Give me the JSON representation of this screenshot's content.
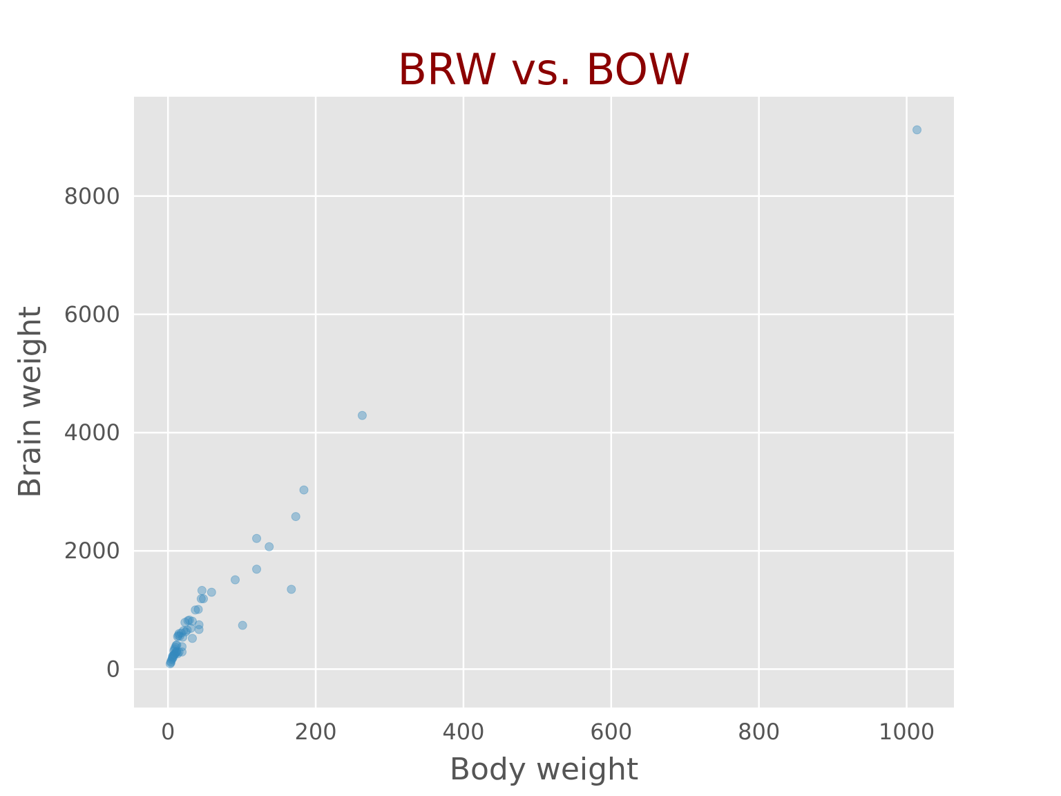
{
  "chart_data": {
    "type": "scatter",
    "title": "BRW vs. BOW",
    "xlabel": "Body weight",
    "ylabel": "Brain weight",
    "xlim": [
      -46,
      1064
    ],
    "ylim": [
      -650,
      9680
    ],
    "xticks": [
      0,
      200,
      400,
      600,
      800,
      1000
    ],
    "yticks": [
      0,
      2000,
      4000,
      6000,
      8000
    ],
    "xtick_labels": [
      "0",
      "200",
      "400",
      "600",
      "800",
      "1000"
    ],
    "ytick_labels": [
      "0",
      "2000",
      "4000",
      "6000",
      "8000"
    ],
    "grid": true,
    "colors": {
      "background": "#e5e5e5",
      "grid": "#ffffff",
      "point": "#348abd",
      "title": "#8b0000",
      "text": "#555555"
    },
    "point_alpha": 0.4,
    "series": [
      {
        "points": [
          [
            1014,
            9120
          ],
          [
            263,
            4290
          ],
          [
            184,
            3030
          ],
          [
            173,
            2580
          ],
          [
            120,
            2210
          ],
          [
            137,
            2070
          ],
          [
            120,
            1690
          ],
          [
            91,
            1510
          ],
          [
            167,
            1350
          ],
          [
            101,
            740
          ],
          [
            59,
            1300
          ],
          [
            46,
            1330
          ],
          [
            48,
            1190
          ],
          [
            45,
            1190
          ],
          [
            41,
            1010
          ],
          [
            37,
            1000
          ],
          [
            42,
            750
          ],
          [
            42,
            670
          ],
          [
            29,
            830
          ],
          [
            27,
            820
          ],
          [
            33,
            810
          ],
          [
            23,
            790
          ],
          [
            31,
            690
          ],
          [
            26,
            660
          ],
          [
            21,
            650
          ],
          [
            24,
            630
          ],
          [
            18,
            610
          ],
          [
            15,
            600
          ],
          [
            14,
            570
          ],
          [
            16,
            560
          ],
          [
            13,
            550
          ],
          [
            20,
            540
          ],
          [
            33,
            520
          ],
          [
            19,
            380
          ],
          [
            12,
            410
          ],
          [
            11,
            400
          ],
          [
            10,
            370
          ],
          [
            9,
            340
          ],
          [
            8,
            310
          ],
          [
            12,
            300
          ],
          [
            15,
            290
          ],
          [
            19,
            290
          ],
          [
            11,
            280
          ],
          [
            13,
            260
          ],
          [
            10,
            270
          ],
          [
            9,
            250
          ],
          [
            8,
            240
          ],
          [
            7,
            230
          ],
          [
            6,
            210
          ],
          [
            7,
            200
          ],
          [
            6,
            180
          ],
          [
            5,
            160
          ],
          [
            4,
            130
          ],
          [
            4,
            110
          ],
          [
            3,
            90
          ]
        ]
      }
    ]
  }
}
